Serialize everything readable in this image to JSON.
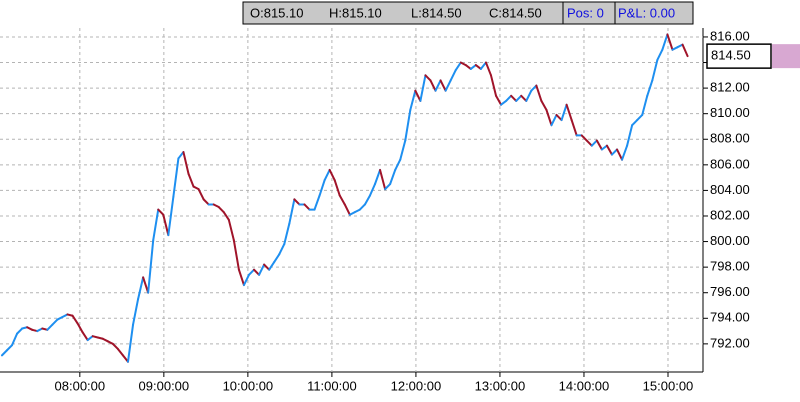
{
  "chart_data": {
    "type": "line",
    "info": {
      "open": "O:815.10",
      "high": "H:815.10",
      "low": "L:814.50",
      "close": "C:814.50",
      "position": "Pos: 0",
      "pnl": "P&L: 0.00"
    },
    "x": [
      "07:04:24",
      "07:08:00",
      "07:11:36",
      "07:15:12",
      "07:18:48",
      "07:22:24",
      "07:26:00",
      "07:29:36",
      "07:33:12",
      "07:36:48",
      "07:40:24",
      "07:44:00",
      "07:47:36",
      "07:51:12",
      "07:54:48",
      "07:58:24",
      "08:02:00",
      "08:05:36",
      "08:09:12",
      "08:12:48",
      "08:16:24",
      "08:20:00",
      "08:23:36",
      "08:27:12",
      "08:30:48",
      "08:34:24",
      "08:38:00",
      "08:41:36",
      "08:45:12",
      "08:48:48",
      "08:52:24",
      "08:56:00",
      "08:59:36",
      "09:03:12",
      "09:06:48",
      "09:10:24",
      "09:14:00",
      "09:17:36",
      "09:21:12",
      "09:24:48",
      "09:28:24",
      "09:32:00",
      "09:35:36",
      "09:39:12",
      "09:42:48",
      "09:46:24",
      "09:50:00",
      "09:53:36",
      "09:57:12",
      "10:00:48",
      "10:04:24",
      "10:08:00",
      "10:11:36",
      "10:15:12",
      "10:18:48",
      "10:22:24",
      "10:26:00",
      "10:29:36",
      "10:33:12",
      "10:36:48",
      "10:40:24",
      "10:44:00",
      "10:47:36",
      "10:51:12",
      "10:54:48",
      "10:58:24",
      "11:02:00",
      "11:05:36",
      "11:09:12",
      "11:12:48",
      "11:16:24",
      "11:20:00",
      "11:23:36",
      "11:27:12",
      "11:30:48",
      "11:34:24",
      "11:38:00",
      "11:41:36",
      "11:45:12",
      "11:48:48",
      "11:52:24",
      "11:56:00",
      "11:59:36",
      "12:03:12",
      "12:06:48",
      "12:10:24",
      "12:14:00",
      "12:17:36",
      "12:21:12",
      "12:24:48",
      "12:28:24",
      "12:32:00",
      "12:35:36",
      "12:39:12",
      "12:42:48",
      "12:46:24",
      "12:50:00",
      "12:53:36",
      "12:57:12",
      "13:00:48",
      "13:04:24",
      "13:08:00",
      "13:11:36",
      "13:15:12",
      "13:18:48",
      "13:22:24",
      "13:26:00",
      "13:29:36",
      "13:33:12",
      "13:36:48",
      "13:40:24",
      "13:44:00",
      "13:47:36",
      "13:51:12",
      "13:54:48",
      "13:58:24",
      "14:02:00",
      "14:05:36",
      "14:09:12",
      "14:12:48",
      "14:16:24",
      "14:20:00",
      "14:23:36",
      "14:27:12",
      "14:30:48",
      "14:34:24",
      "14:38:00",
      "14:41:36",
      "14:45:12",
      "14:48:48",
      "14:52:24",
      "14:56:00",
      "14:59:36",
      "15:03:12",
      "15:06:48",
      "15:10:24",
      "15:14:00"
    ],
    "values": [
      791.1,
      791.5,
      791.9,
      792.8,
      793.2,
      793.3,
      793.1,
      793.0,
      793.2,
      793.1,
      793.5,
      793.9,
      794.1,
      794.3,
      794.2,
      793.6,
      792.9,
      792.3,
      792.6,
      792.5,
      792.4,
      792.2,
      792.0,
      791.6,
      791.1,
      790.6,
      793.5,
      795.5,
      797.2,
      796.0,
      800.1,
      802.5,
      802.1,
      800.5,
      803.5,
      806.5,
      807.0,
      805.3,
      804.3,
      804.1,
      803.3,
      802.9,
      802.9,
      802.7,
      802.3,
      801.7,
      800.1,
      797.8,
      796.6,
      797.4,
      797.8,
      797.4,
      798.2,
      797.8,
      798.4,
      799.0,
      799.8,
      801.4,
      803.3,
      802.9,
      802.9,
      802.5,
      802.5,
      803.6,
      804.8,
      805.6,
      804.8,
      803.6,
      802.9,
      802.1,
      802.3,
      802.5,
      802.9,
      803.6,
      804.5,
      805.6,
      804.1,
      804.5,
      805.6,
      806.4,
      807.9,
      810.3,
      811.8,
      811.0,
      813.0,
      812.6,
      811.8,
      812.6,
      811.8,
      812.6,
      813.4,
      814.0,
      813.8,
      813.5,
      813.8,
      813.5,
      814.0,
      813.0,
      811.4,
      810.7,
      811.0,
      811.4,
      811.0,
      811.4,
      811.0,
      811.8,
      812.2,
      811.0,
      810.3,
      809.1,
      809.9,
      809.5,
      810.7,
      809.5,
      808.3,
      808.3,
      807.9,
      807.5,
      807.9,
      807.2,
      807.5,
      806.8,
      807.2,
      806.4,
      807.5,
      809.1,
      809.5,
      809.9,
      811.4,
      812.6,
      814.2,
      815.0,
      816.2,
      815.0,
      815.2,
      815.4,
      814.5
    ],
    "up_color": "#1e8ff0",
    "down_color": "#a0142a",
    "xlim": [
      "07:03:00",
      "15:25:00"
    ],
    "xticks": [
      "08:00:00",
      "09:00:00",
      "10:00:00",
      "11:00:00",
      "12:00:00",
      "13:00:00",
      "14:00:00",
      "15:00:00"
    ],
    "ylim": [
      789.8,
      816.7
    ],
    "yticks": [
      {
        "value": 792,
        "label": "792.00"
      },
      {
        "value": 794,
        "label": "794.00"
      },
      {
        "value": 796,
        "label": "796.00"
      },
      {
        "value": 798,
        "label": "798.00"
      },
      {
        "value": 800,
        "label": "800.00"
      },
      {
        "value": 802,
        "label": "802.00"
      },
      {
        "value": 804,
        "label": "804.00"
      },
      {
        "value": 806,
        "label": "806.00"
      },
      {
        "value": 808,
        "label": "808.00"
      },
      {
        "value": 810,
        "label": "810.00"
      },
      {
        "value": 812,
        "label": "812.00"
      },
      {
        "value": 814,
        "label": "814.00"
      },
      {
        "value": 816,
        "label": "816.00"
      }
    ],
    "current_price": {
      "value": 814.5,
      "label": "814.50"
    },
    "grid": true
  }
}
